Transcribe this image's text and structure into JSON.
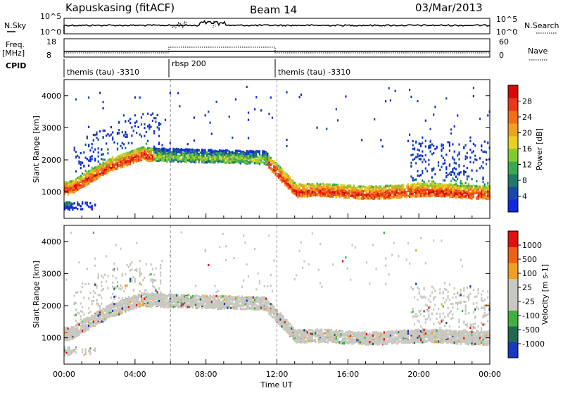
{
  "header": {
    "station": "Kapuskasing (fitACF)",
    "beam": "Beam 14",
    "date": "03/Mar/2013"
  },
  "top_panels": {
    "nsky_label": "N.Sky",
    "nsky_ticks": [
      "10^5",
      "10^0"
    ],
    "nsearch_label": "N.Search",
    "nsearch_ticks": [
      "10^5",
      "10^0"
    ],
    "freq_label": "Freq.",
    "freq_unit": "[MHz]",
    "freq_ticks": [
      "18",
      "8"
    ],
    "nave_label": "Nave",
    "nave_ticks": [
      "60",
      "0"
    ],
    "cpid_label": "CPID",
    "cpid_segments": [
      {
        "label": "themis (tau) -3310",
        "start_h": 0,
        "end_h": 6
      },
      {
        "label": "rbsp 200",
        "start_h": 6,
        "end_h": 12
      },
      {
        "label": "themis (tau) -3310",
        "start_h": 12,
        "end_h": 24
      }
    ]
  },
  "chart_data": [
    {
      "type": "heatmap",
      "name": "power",
      "ylabel": "Slant Range [km]",
      "ylim": [
        180,
        4500
      ],
      "yticks": [
        "1000",
        "2000",
        "3000",
        "4000"
      ],
      "colorbar_label": "Power [dB]",
      "colorbar_ticks": [
        "28",
        "24",
        "20",
        "16",
        "12",
        "8",
        "4"
      ],
      "colors": [
        "#1028e0",
        "#1848a8",
        "#207868",
        "#3aa850",
        "#80cc30",
        "#e8d020",
        "#f0a020",
        "#f07018",
        "#e83818",
        "#d80808"
      ]
    },
    {
      "type": "heatmap",
      "name": "velocity",
      "ylabel": "Slant Range [km]",
      "ylim": [
        180,
        4500
      ],
      "yticks": [
        "1000",
        "2000",
        "3000",
        "4000"
      ],
      "colorbar_label": "Velocity [m s-1]",
      "colorbar_ticks": [
        "1000",
        "500",
        "100",
        "25",
        "-25",
        "-100",
        "-500",
        "-1000"
      ],
      "colors": [
        "#1838c0",
        "#206850",
        "#40b040",
        "#c8c8c0",
        "#c8c8c0",
        "#f0a020",
        "#f06018",
        "#e01010"
      ]
    }
  ],
  "xaxis": {
    "label": "Time UT",
    "ticks": [
      "00:00",
      "04:00",
      "08:00",
      "12:00",
      "16:00",
      "20:00",
      "00:00"
    ]
  }
}
